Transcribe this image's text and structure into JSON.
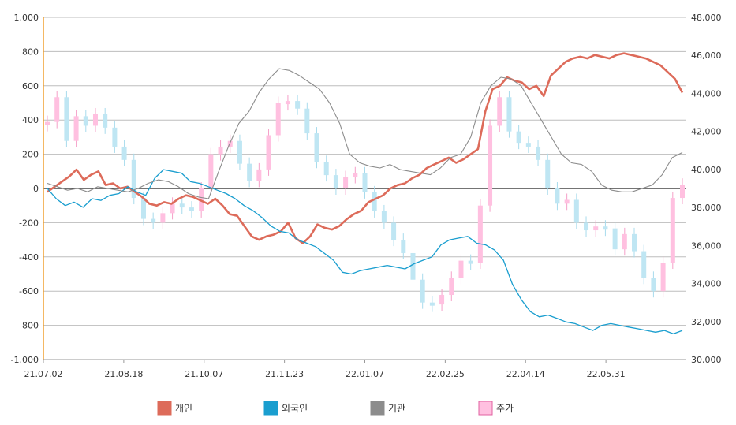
{
  "chart_data": {
    "type": "line",
    "title": "",
    "left_axis": {
      "ylim": [
        -1000,
        1000
      ],
      "ticks": [
        1000,
        800,
        600,
        400,
        200,
        0,
        -200,
        -400,
        -600,
        -800,
        -1000
      ],
      "tick_labels": [
        "1,000",
        "800",
        "600",
        "400",
        "200",
        "0",
        "-200",
        "-400",
        "-600",
        "-800",
        "-1,000"
      ]
    },
    "right_axis": {
      "ylim": [
        30000,
        48000
      ],
      "ticks": [
        48000,
        46000,
        44000,
        42000,
        40000,
        38000,
        36000,
        34000,
        32000,
        30000
      ],
      "tick_labels": [
        "48,000",
        "46,000",
        "44,000",
        "42,000",
        "40,000",
        "38,000",
        "36,000",
        "34,000",
        "32,000",
        "30,000"
      ]
    },
    "x_tick_labels": [
      "21.07.02",
      "21.08.18",
      "21.10.07",
      "21.11.23",
      "22.01.07",
      "22.02.25",
      "22.04.14",
      "22.05.31"
    ],
    "grid": true,
    "legend_position": "bottom",
    "series": [
      {
        "name": "개인",
        "color": "#dd6b5a",
        "axis": "left",
        "values": [
          -20,
          10,
          40,
          70,
          110,
          50,
          80,
          100,
          20,
          30,
          0,
          10,
          -20,
          -50,
          -90,
          -100,
          -80,
          -90,
          -60,
          -40,
          -50,
          -70,
          -90,
          -60,
          -100,
          -150,
          -160,
          -220,
          -280,
          -300,
          -280,
          -270,
          -250,
          -200,
          -290,
          -320,
          -280,
          -210,
          -230,
          -240,
          -220,
          -180,
          -150,
          -130,
          -80,
          -60,
          -40,
          0,
          20,
          30,
          60,
          80,
          120,
          140,
          160,
          180,
          150,
          170,
          200,
          230,
          450,
          580,
          600,
          650,
          630,
          620,
          580,
          600,
          540,
          660,
          700,
          740,
          760,
          770,
          760,
          780,
          770,
          760,
          780,
          790,
          780,
          770,
          760,
          740,
          720,
          680,
          640,
          560
        ],
        "x_frac": [
          0,
          0.0125,
          0.025,
          0.0375,
          0.05,
          0.0625,
          0.075,
          0.0875,
          0.1,
          0.1125,
          0.125,
          0.1375,
          0.15,
          0.1625,
          0.175,
          0.1875,
          0.2,
          0.2125,
          0.225,
          0.2375,
          0.25,
          0.2625,
          0.275,
          0.2875,
          0.3,
          0.3125,
          0.325,
          0.3375,
          0.35,
          0.3625,
          0.375,
          0.3875,
          0.4,
          0.4125,
          0.425,
          0.4375,
          0.45,
          0.4625,
          0.475,
          0.4875,
          0.5,
          0.5125,
          0.525,
          0.5375,
          0.55,
          0.5625,
          0.575,
          0.5875,
          0.6,
          0.6125,
          0.625,
          0.6375,
          0.65,
          0.6625,
          0.675,
          0.6875,
          0.7,
          0.7125,
          0.725,
          0.7375,
          0.75,
          0.7625,
          0.775,
          0.7875,
          0.8,
          0.8125,
          0.825,
          0.8375,
          0.85,
          0.8625,
          0.875,
          0.8875,
          0.9,
          0.9125,
          0.925,
          0.9375,
          0.95,
          0.9625,
          0.975,
          0.9875,
          1,
          1,
          1,
          1,
          1,
          1,
          1,
          1
        ]
      },
      {
        "name": "외국인",
        "color": "#1a9ecf",
        "axis": "left",
        "values": [
          0,
          -60,
          -100,
          -80,
          -110,
          -60,
          -70,
          -40,
          -30,
          10,
          -20,
          -40,
          60,
          110,
          100,
          90,
          40,
          30,
          10,
          -10,
          -30,
          -60,
          -100,
          -130,
          -170,
          -220,
          -250,
          -260,
          -300,
          -320,
          -340,
          -380,
          -420,
          -490,
          -500,
          -480,
          -470,
          -460,
          -450,
          -460,
          -470,
          -440,
          -420,
          -400,
          -330,
          -300,
          -290,
          -280,
          -320,
          -330,
          -360,
          -420,
          -560,
          -650,
          -720,
          -750,
          -740,
          -760,
          -780,
          -790,
          -810,
          -830,
          -800,
          -790,
          -800,
          -810,
          -820,
          -830,
          -840,
          -830,
          -850,
          -830
        ],
        "x_frac": []
      },
      {
        "name": "기관",
        "color": "#8c8c8c",
        "axis": "left",
        "values": [
          30,
          10,
          -10,
          0,
          -20,
          10,
          0,
          -10,
          -20,
          0,
          30,
          50,
          40,
          10,
          -30,
          -50,
          -60,
          100,
          250,
          380,
          450,
          560,
          640,
          700,
          690,
          660,
          620,
          580,
          500,
          380,
          200,
          150,
          130,
          120,
          140,
          110,
          100,
          90,
          80,
          120,
          180,
          200,
          300,
          500,
          600,
          650,
          640,
          600,
          500,
          400,
          300,
          200,
          150,
          140,
          100,
          20,
          -10,
          -20,
          -20,
          0,
          20,
          80,
          180,
          210
        ],
        "x_frac": []
      },
      {
        "name": "주가",
        "color": "#ffc0e0",
        "border_color": "#e060a0",
        "axis": "right",
        "values": [
          42500,
          43800,
          41500,
          42800,
          42300,
          42900,
          42200,
          41200,
          40500,
          38500,
          37400,
          37200,
          37700,
          38200,
          38000,
          37800,
          39000,
          40800,
          41200,
          41500,
          40300,
          39400,
          40000,
          41800,
          43500,
          43600,
          43200,
          41900,
          40400,
          39700,
          39000,
          39600,
          39800,
          38800,
          37800,
          37200,
          36300,
          35600,
          34200,
          33000,
          32900,
          33400,
          34300,
          35200,
          35100,
          38100,
          42300,
          43800,
          42000,
          41400,
          41200,
          40500,
          39000,
          38200,
          38400,
          37200,
          36800,
          37000,
          36900,
          35800,
          36600,
          35700,
          34300,
          33600,
          35100,
          38500,
          39200
        ],
        "x_frac": []
      }
    ]
  }
}
